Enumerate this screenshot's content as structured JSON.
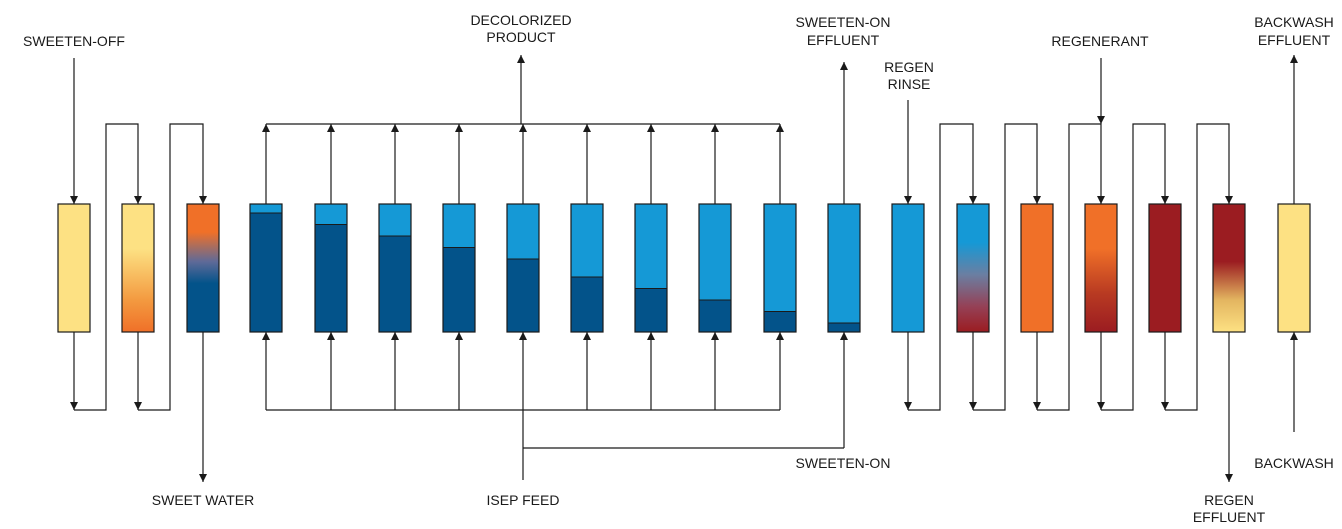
{
  "labels": {
    "sweeten_off": "SWEETEN-OFF",
    "decolorized_product": [
      "DECOLORIZED",
      "PRODUCT"
    ],
    "sweeten_on_effluent": [
      "SWEETEN-ON",
      "EFFLUENT"
    ],
    "regen_rinse": [
      "REGEN",
      "RINSE"
    ],
    "regenerant": "REGENERANT",
    "backwash_effluent": [
      "BACKWASH",
      "EFFLUENT"
    ],
    "sweet_water": "SWEET WATER",
    "isep_feed": "ISEP FEED",
    "sweeten_on": "SWEETEN-ON",
    "backwash": "BACKWASH",
    "regen_effluent": [
      "REGEN",
      "EFFLUENT"
    ]
  },
  "colors": {
    "pale_yellow": "#fde183",
    "orange": "#f07028",
    "dark_blue": "#03538a",
    "light_blue": "#1599d6",
    "dark_red": "#9b1c21",
    "line": "#1a1a1a"
  },
  "columns": [
    {
      "id": "col-1",
      "fill": "solid-pale-yellow"
    },
    {
      "id": "col-2",
      "fill": "gradient-yellow-to-orange"
    },
    {
      "id": "col-3",
      "fill": "gradient-orange-to-dark-blue"
    },
    {
      "id": "col-4",
      "fill": "dark-blue-under-light-blue",
      "light_blue_fraction": 0.07
    },
    {
      "id": "col-5",
      "fill": "dark-blue-under-light-blue",
      "light_blue_fraction": 0.16
    },
    {
      "id": "col-6",
      "fill": "dark-blue-under-light-blue",
      "light_blue_fraction": 0.25
    },
    {
      "id": "col-7",
      "fill": "dark-blue-under-light-blue",
      "light_blue_fraction": 0.34
    },
    {
      "id": "col-8",
      "fill": "dark-blue-under-light-blue",
      "light_blue_fraction": 0.43
    },
    {
      "id": "col-9",
      "fill": "dark-blue-under-light-blue",
      "light_blue_fraction": 0.57
    },
    {
      "id": "col-10",
      "fill": "dark-blue-under-light-blue",
      "light_blue_fraction": 0.66
    },
    {
      "id": "col-11",
      "fill": "dark-blue-under-light-blue",
      "light_blue_fraction": 0.75
    },
    {
      "id": "col-12",
      "fill": "dark-blue-under-light-blue",
      "light_blue_fraction": 0.84
    },
    {
      "id": "col-13",
      "fill": "dark-blue-under-light-blue",
      "light_blue_fraction": 0.93
    },
    {
      "id": "col-14",
      "fill": "solid-light-blue"
    },
    {
      "id": "col-15",
      "fill": "gradient-light-blue-to-dark-red"
    },
    {
      "id": "col-16",
      "fill": "solid-orange"
    },
    {
      "id": "col-17",
      "fill": "gradient-orange-to-dark-red"
    },
    {
      "id": "col-18",
      "fill": "solid-dark-red"
    },
    {
      "id": "col-19",
      "fill": "gradient-dark-red-to-pale-yellow"
    },
    {
      "id": "col-20",
      "fill": "solid-pale-yellow"
    }
  ]
}
